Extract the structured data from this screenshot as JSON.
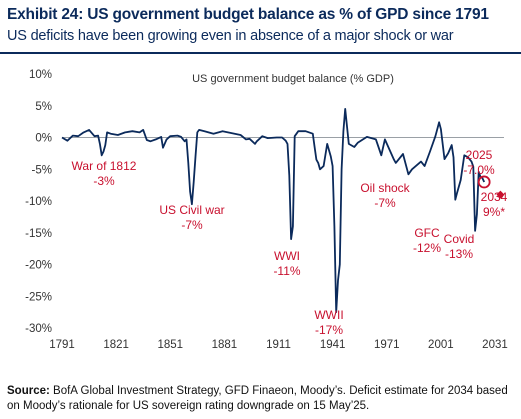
{
  "header": {
    "title": "Exhibit 24: US government budget balance as % of GPD since 1791",
    "subtitle": "US deficits have been growing even in absence of a major shock or war"
  },
  "source": {
    "label": "Source:",
    "text": "BofA Global Investment Strategy, GFD Finaeon, Moody’s. Deficit estimate for 2034 based on Moody’s rationale for US sovereign rating downgrade on 15 May’25."
  },
  "colors": {
    "line": "#0b2a5b",
    "annotation": "#c8102e",
    "zero_line": "#9aa0a6",
    "text": "#0b2a5b"
  },
  "chart_data": {
    "type": "line",
    "title": "US government budget balance (% GDP)",
    "xlabel": "",
    "ylabel": "",
    "xlim": [
      1791,
      2036
    ],
    "ylim": [
      -30,
      10
    ],
    "x_ticks": [
      1791,
      1821,
      1851,
      1881,
      1911,
      1941,
      1971,
      2001,
      2031
    ],
    "y_ticks": [
      10,
      5,
      0,
      -5,
      -10,
      -15,
      -20,
      -25,
      -30
    ],
    "y_tick_labels": [
      "10%",
      "5%",
      "0%",
      "-5%",
      "-10%",
      "-15%",
      "-20%",
      "-25%",
      "-30%"
    ],
    "grid": false,
    "series": [
      {
        "x": [
          1791,
          1794,
          1797,
          1800,
          1803,
          1806,
          1809,
          1811,
          1812,
          1813,
          1814,
          1815,
          1816,
          1818,
          1822,
          1826,
          1830,
          1834,
          1836,
          1838,
          1840,
          1843,
          1846,
          1847,
          1849,
          1851,
          1855,
          1857,
          1859,
          1860,
          1861,
          1862,
          1863,
          1864,
          1865,
          1866,
          1867,
          1870,
          1875,
          1880,
          1885,
          1890,
          1893,
          1895,
          1898,
          1899,
          1902,
          1905,
          1910,
          1913,
          1915,
          1916,
          1917,
          1918,
          1919,
          1920,
          1922,
          1926,
          1930,
          1931,
          1932,
          1933,
          1934,
          1936,
          1938,
          1940,
          1941,
          1942,
          1943,
          1944,
          1945,
          1946,
          1947,
          1948,
          1950,
          1953,
          1955,
          1960,
          1965,
          1968,
          1970,
          1975,
          1976,
          1980,
          1983,
          1985,
          1990,
          1992,
          1995,
          1998,
          2000,
          2001,
          2003,
          2005,
          2007,
          2008,
          2009,
          2010,
          2012,
          2014,
          2016,
          2018,
          2019,
          2020,
          2021,
          2022,
          2023,
          2024,
          2025
        ],
        "y": [
          0,
          -0.5,
          0.3,
          0.2,
          0.8,
          1.2,
          0.2,
          0.3,
          -1.0,
          -2.8,
          -2.2,
          -1.2,
          0.8,
          0.6,
          0.4,
          0.8,
          1.0,
          0.8,
          1.2,
          -0.4,
          -0.6,
          -0.3,
          0.1,
          -1.6,
          -0.3,
          0.2,
          0.3,
          0.1,
          -0.6,
          -0.3,
          -4.0,
          -8.5,
          -10.5,
          -7.0,
          -3.0,
          0.8,
          1.2,
          1.0,
          0.6,
          1.0,
          0.7,
          0.4,
          -0.3,
          -0.2,
          -1.0,
          -0.6,
          0.2,
          -0.1,
          0.0,
          0.0,
          -0.5,
          -1.0,
          -6.0,
          -16.0,
          -14.0,
          0.2,
          1.0,
          1.0,
          0.6,
          -1.5,
          -3.5,
          -4.0,
          -5.0,
          -4.5,
          -1.0,
          -3.0,
          -4.5,
          -14.0,
          -27.5,
          -22.5,
          -20.0,
          -5.0,
          1.0,
          4.5,
          -1.0,
          -1.5,
          -0.8,
          0.1,
          -0.3,
          -2.8,
          -0.3,
          -3.5,
          -4.0,
          -2.6,
          -5.8,
          -5.0,
          -3.8,
          -4.5,
          -2.2,
          0.2,
          2.4,
          1.3,
          -3.4,
          -2.5,
          -1.2,
          -3.1,
          -9.8,
          -8.7,
          -6.7,
          -2.8,
          -3.1,
          -3.8,
          -4.6,
          -14.7,
          -12.1,
          -5.4,
          -6.2,
          -6.4,
          -7.0
        ]
      },
      {
        "x": [
          2034
        ],
        "y": [
          -9.0
        ]
      }
    ],
    "annotations": [
      {
        "line1": "War of 1812",
        "line2": "-3%"
      },
      {
        "line1": "US Civil war",
        "line2": "-7%"
      },
      {
        "line1": "WWI",
        "line2": "-11%"
      },
      {
        "line1": "WWII",
        "line2": "-17%"
      },
      {
        "line1": "Oil shock",
        "line2": "-7%"
      },
      {
        "line1": "GFC",
        "line2": "-12%"
      },
      {
        "line1": "Covid",
        "line2": "-13%"
      },
      {
        "line1": "2025",
        "line2": "-7.0%"
      },
      {
        "line1": "2034",
        "line2": "9%*"
      }
    ]
  }
}
